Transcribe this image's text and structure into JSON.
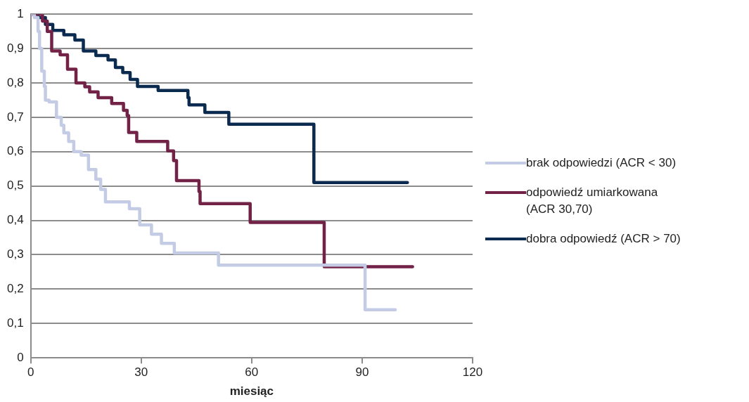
{
  "chart_data": {
    "type": "step",
    "xlabel": "miesiąc",
    "xlim": [
      0,
      120
    ],
    "xticks": [
      0,
      30,
      60,
      90,
      120
    ],
    "ylim": [
      0,
      1
    ],
    "yticks": [
      0,
      {
        "value": 0.1,
        "label": "0,1"
      },
      {
        "value": 0.2,
        "label": "0,2"
      },
      {
        "value": 0.3,
        "label": "0,3"
      },
      {
        "value": 0.4,
        "label": "0,4"
      },
      {
        "value": 0.5,
        "label": "0,5"
      },
      {
        "value": 0.6,
        "label": "0,6"
      },
      {
        "value": 0.7,
        "label": "0,7"
      },
      {
        "value": 0.8,
        "label": "0,8"
      },
      {
        "value": 0.9,
        "label": "0,9"
      },
      1
    ],
    "grid": "y",
    "legend": "right",
    "line_style": "solid",
    "marker": "none",
    "series": [
      {
        "name": "brak odpowiedzi (ACR < 30)",
        "color": "#c3cce4",
        "x": [
          0,
          1,
          2,
          2.4,
          3,
          3.7,
          4,
          5,
          7,
          8.3,
          9,
          10.3,
          11.7,
          13.7,
          15.7,
          17.7,
          19,
          20.3,
          26.8,
          29.6,
          32.8,
          35.5,
          39,
          51,
          90.8,
          99
        ],
        "values": [
          1,
          0.99,
          0.95,
          0.9,
          0.834,
          0.79,
          0.75,
          0.745,
          0.7,
          0.677,
          0.655,
          0.63,
          0.6,
          0.59,
          0.548,
          0.52,
          0.49,
          0.454,
          0.434,
          0.387,
          0.36,
          0.333,
          0.305,
          0.27,
          0.14,
          0.14
        ]
      },
      {
        "name": "odpowiedź umiarkowana (ACR 30,70)",
        "color": "#722147",
        "x": [
          0,
          3.2,
          4.5,
          5.7,
          8,
          10,
          12.3,
          14.7,
          16,
          18.3,
          22,
          25.2,
          26.2,
          26.6,
          28.8,
          37.2,
          38.8,
          39.6,
          45.7,
          46,
          59.6,
          79.7,
          103.7
        ],
        "values": [
          1,
          0.98,
          0.95,
          0.893,
          0.882,
          0.84,
          0.8,
          0.789,
          0.774,
          0.757,
          0.74,
          0.72,
          0.705,
          0.656,
          0.63,
          0.602,
          0.574,
          0.516,
          0.484,
          0.449,
          0.394,
          0.265,
          0.265
        ]
      },
      {
        "name": "dobra odpowiedź (ACR > 70)",
        "color": "#0b2a4f",
        "x": [
          0,
          2,
          4,
          6,
          9,
          12,
          14.3,
          17.7,
          21,
          23,
          25,
          27,
          29,
          34.6,
          42.7,
          43,
          47.3,
          53.8,
          76.9,
          102.3
        ],
        "values": [
          1,
          0.99,
          0.97,
          0.953,
          0.94,
          0.925,
          0.893,
          0.88,
          0.867,
          0.845,
          0.83,
          0.81,
          0.79,
          0.778,
          0.757,
          0.736,
          0.714,
          0.68,
          0.51,
          0.51
        ]
      }
    ]
  }
}
